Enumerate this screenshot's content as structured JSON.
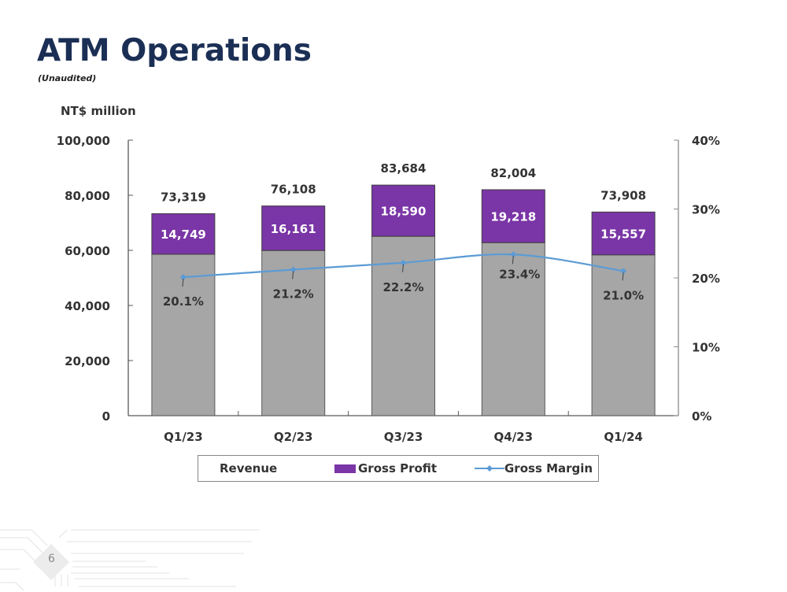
{
  "header": {
    "title": "ATM Operations",
    "subtitle": "(Unaudited)",
    "unit_label": "NT$ million"
  },
  "footer": {
    "page_number": "6"
  },
  "colors": {
    "revenue": "#a6a6a6",
    "gross_profit": "#7a35a6",
    "gross_margin": "#5b9bd5",
    "title": "#1b2f55"
  },
  "chart_data": {
    "type": "bar",
    "title": "ATM Operations",
    "ylabel": "NT$ million",
    "y2label": "",
    "categories": [
      "Q1/23",
      "Q2/23",
      "Q3/23",
      "Q4/23",
      "Q1/24"
    ],
    "series": [
      {
        "name": "Revenue",
        "type": "bar",
        "values": [
          73319,
          76108,
          83684,
          82004,
          73908
        ],
        "labels": [
          "73,319",
          "76,108",
          "83,684",
          "82,004",
          "73,908"
        ]
      },
      {
        "name": "Gross Profit",
        "type": "bar",
        "values": [
          14749,
          16161,
          18590,
          19218,
          15557
        ],
        "labels": [
          "14,749",
          "16,161",
          "18,590",
          "19,218",
          "15,557"
        ]
      },
      {
        "name": "Gross Margin",
        "type": "line",
        "axis": "right",
        "values": [
          20.1,
          21.2,
          22.2,
          23.4,
          21.0
        ],
        "labels": [
          "20.1%",
          "21.2%",
          "22.2%",
          "23.4%",
          "21.0%"
        ]
      }
    ],
    "ylim": [
      0,
      100000
    ],
    "yticks": [
      0,
      20000,
      40000,
      60000,
      80000,
      100000
    ],
    "ytick_labels": [
      "0",
      "20,000",
      "40,000",
      "60,000",
      "80,000",
      "100,000"
    ],
    "y2lim": [
      0,
      40
    ],
    "y2ticks": [
      0,
      10,
      20,
      30,
      40
    ],
    "y2tick_labels": [
      "0%",
      "10%",
      "20%",
      "30%",
      "40%"
    ],
    "legend": {
      "placement": "bottom",
      "entries": [
        "Revenue",
        "Gross Profit",
        "Gross Margin"
      ]
    },
    "grid": false
  }
}
